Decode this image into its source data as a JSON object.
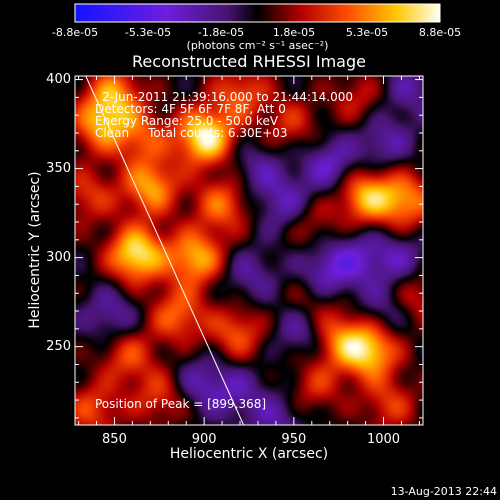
{
  "colorbar": {
    "tick_labels": [
      "-8.8e-05",
      "-5.3e-05",
      "-1.8e-05",
      "1.8e-05",
      "5.3e-05",
      "8.8e-05"
    ],
    "units": "(photons cm⁻² s⁻¹ asec⁻²)",
    "range": [
      -8.8e-05,
      8.8e-05
    ]
  },
  "chart_data": {
    "type": "heatmap",
    "title": "Reconstructed RHESSI Image",
    "xlabel": "Heliocentric X (arcsec)",
    "ylabel": "Heliocentric Y (arcsec)",
    "xlim": [
      828,
      1022
    ],
    "ylim": [
      206,
      402
    ],
    "x_ticks": [
      850,
      900,
      950,
      1000
    ],
    "y_ticks": [
      250,
      300,
      350,
      400
    ],
    "x_tick_labels": [
      "850",
      "900",
      "950",
      "1000"
    ],
    "y_tick_labels": [
      "250",
      "300",
      "350",
      "400"
    ],
    "annotations": [
      "2-Jun-2011 21:39:16.000 to 21:44:14.000",
      "Detectors: 4F 5F 6F 7F 8F, Att 0",
      "Energy Range: 25.0 - 50.0 keV",
      "Clean     Total counts: 6.30E+03"
    ],
    "peak_label": "Position of Peak = [899,368]",
    "peak": [
      899,
      368
    ],
    "limb_line": [
      [
        834,
        402
      ],
      [
        922,
        206
      ]
    ],
    "sources": [
      {
        "x": 900,
        "y": 368,
        "amp": 1.0
      },
      {
        "x": 862,
        "y": 302,
        "amp": 0.95
      },
      {
        "x": 895,
        "y": 300,
        "amp": 0.75
      },
      {
        "x": 870,
        "y": 340,
        "amp": 0.7
      },
      {
        "x": 842,
        "y": 375,
        "amp": 0.65
      },
      {
        "x": 850,
        "y": 392,
        "amp": 0.6
      },
      {
        "x": 910,
        "y": 330,
        "amp": 0.55
      },
      {
        "x": 885,
        "y": 268,
        "amp": 0.55
      },
      {
        "x": 918,
        "y": 258,
        "amp": 0.5
      },
      {
        "x": 857,
        "y": 245,
        "amp": 0.45
      },
      {
        "x": 990,
        "y": 335,
        "amp": 0.75
      },
      {
        "x": 1012,
        "y": 332,
        "amp": 0.65
      },
      {
        "x": 992,
        "y": 248,
        "amp": 0.85
      },
      {
        "x": 975,
        "y": 255,
        "amp": 0.55
      },
      {
        "x": 960,
        "y": 320,
        "amp": 0.3
      },
      {
        "x": 948,
        "y": 375,
        "amp": 0.35
      },
      {
        "x": 985,
        "y": 390,
        "amp": 0.3
      },
      {
        "x": 838,
        "y": 215,
        "amp": 0.45
      },
      {
        "x": 875,
        "y": 222,
        "amp": 0.4
      },
      {
        "x": 962,
        "y": 228,
        "amp": 0.35
      },
      {
        "x": 1003,
        "y": 218,
        "amp": 0.4
      },
      {
        "x": 835,
        "y": 335,
        "amp": 0.4
      },
      {
        "x": 920,
        "y": 392,
        "amp": 0.5
      },
      {
        "x": 865,
        "y": 368,
        "amp": 0.45
      },
      {
        "x": 960,
        "y": 275,
        "amp": 0.3
      },
      {
        "x": 1018,
        "y": 278,
        "amp": 0.35
      },
      {
        "x": 945,
        "y": 330,
        "amp": -0.4
      },
      {
        "x": 970,
        "y": 352,
        "amp": -0.45
      },
      {
        "x": 985,
        "y": 300,
        "amp": -0.35
      },
      {
        "x": 955,
        "y": 260,
        "amp": -0.4
      },
      {
        "x": 968,
        "y": 292,
        "amp": -0.45
      },
      {
        "x": 1008,
        "y": 300,
        "amp": -0.35
      },
      {
        "x": 1000,
        "y": 365,
        "amp": -0.35
      },
      {
        "x": 930,
        "y": 350,
        "amp": -0.3
      },
      {
        "x": 918,
        "y": 225,
        "amp": -0.3
      },
      {
        "x": 898,
        "y": 230,
        "amp": -0.35
      },
      {
        "x": 848,
        "y": 268,
        "amp": -0.35
      },
      {
        "x": 940,
        "y": 210,
        "amp": -0.3
      },
      {
        "x": 1015,
        "y": 395,
        "amp": -0.3
      },
      {
        "x": 925,
        "y": 290,
        "amp": -0.3
      },
      {
        "x": 1000,
        "y": 270,
        "amp": -0.3
      }
    ]
  },
  "footer": {
    "timestamp": "13-Aug-2013 22:44"
  }
}
